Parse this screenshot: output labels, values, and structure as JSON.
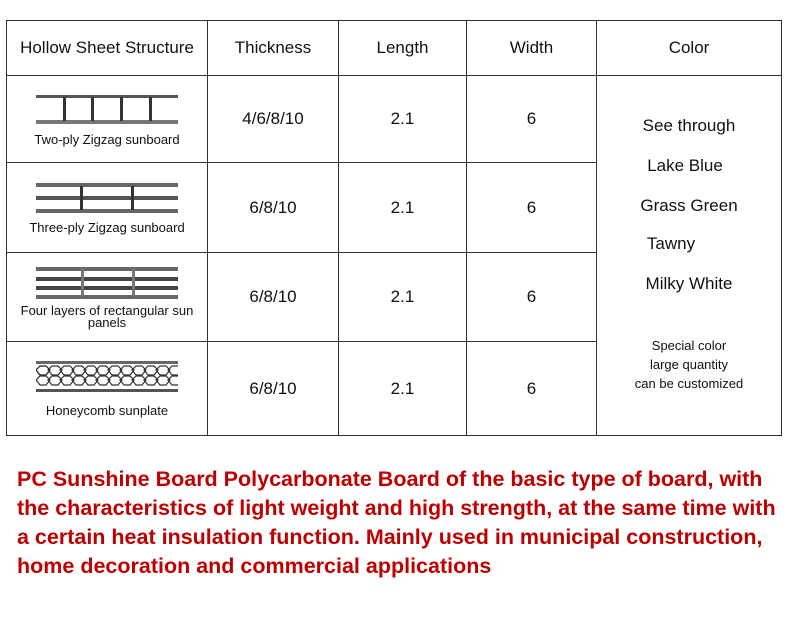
{
  "table": {
    "headers": [
      "Hollow Sheet Structure",
      "Thickness",
      "Length",
      "Width",
      "Color"
    ],
    "rows": [
      {
        "structure": "Two-ply Zigzag sunboard",
        "icon": "two-ply-section-icon",
        "thickness": "4/6/8/10",
        "length": "2.1",
        "width": "6"
      },
      {
        "structure": "Three-ply Zigzag sunboard",
        "icon": "three-ply-section-icon",
        "thickness": "6/8/10",
        "length": "2.1",
        "width": "6"
      },
      {
        "structure": "Four layers of rectangular sun panels",
        "icon": "four-layer-section-icon",
        "thickness": "6/8/10",
        "length": "2.1",
        "width": "6"
      },
      {
        "structure": "Honeycomb sunplate",
        "icon": "honeycomb-section-icon",
        "thickness": "6/8/10",
        "length": "2.1",
        "width": "6"
      }
    ],
    "colors": [
      "See through",
      "Lake Blue",
      "Grass Green",
      "Tawny",
      "Milky White"
    ],
    "special": [
      "Special color",
      "large quantity",
      "can be customized"
    ]
  },
  "description": "PC Sunshine Board Polycarbonate Board of the basic type of board, with the characteristics of light weight and high strength, at the same time with a certain heat insulation function. Mainly used in municipal construction, home decoration and commercial applications",
  "accent_color": "#c00000"
}
